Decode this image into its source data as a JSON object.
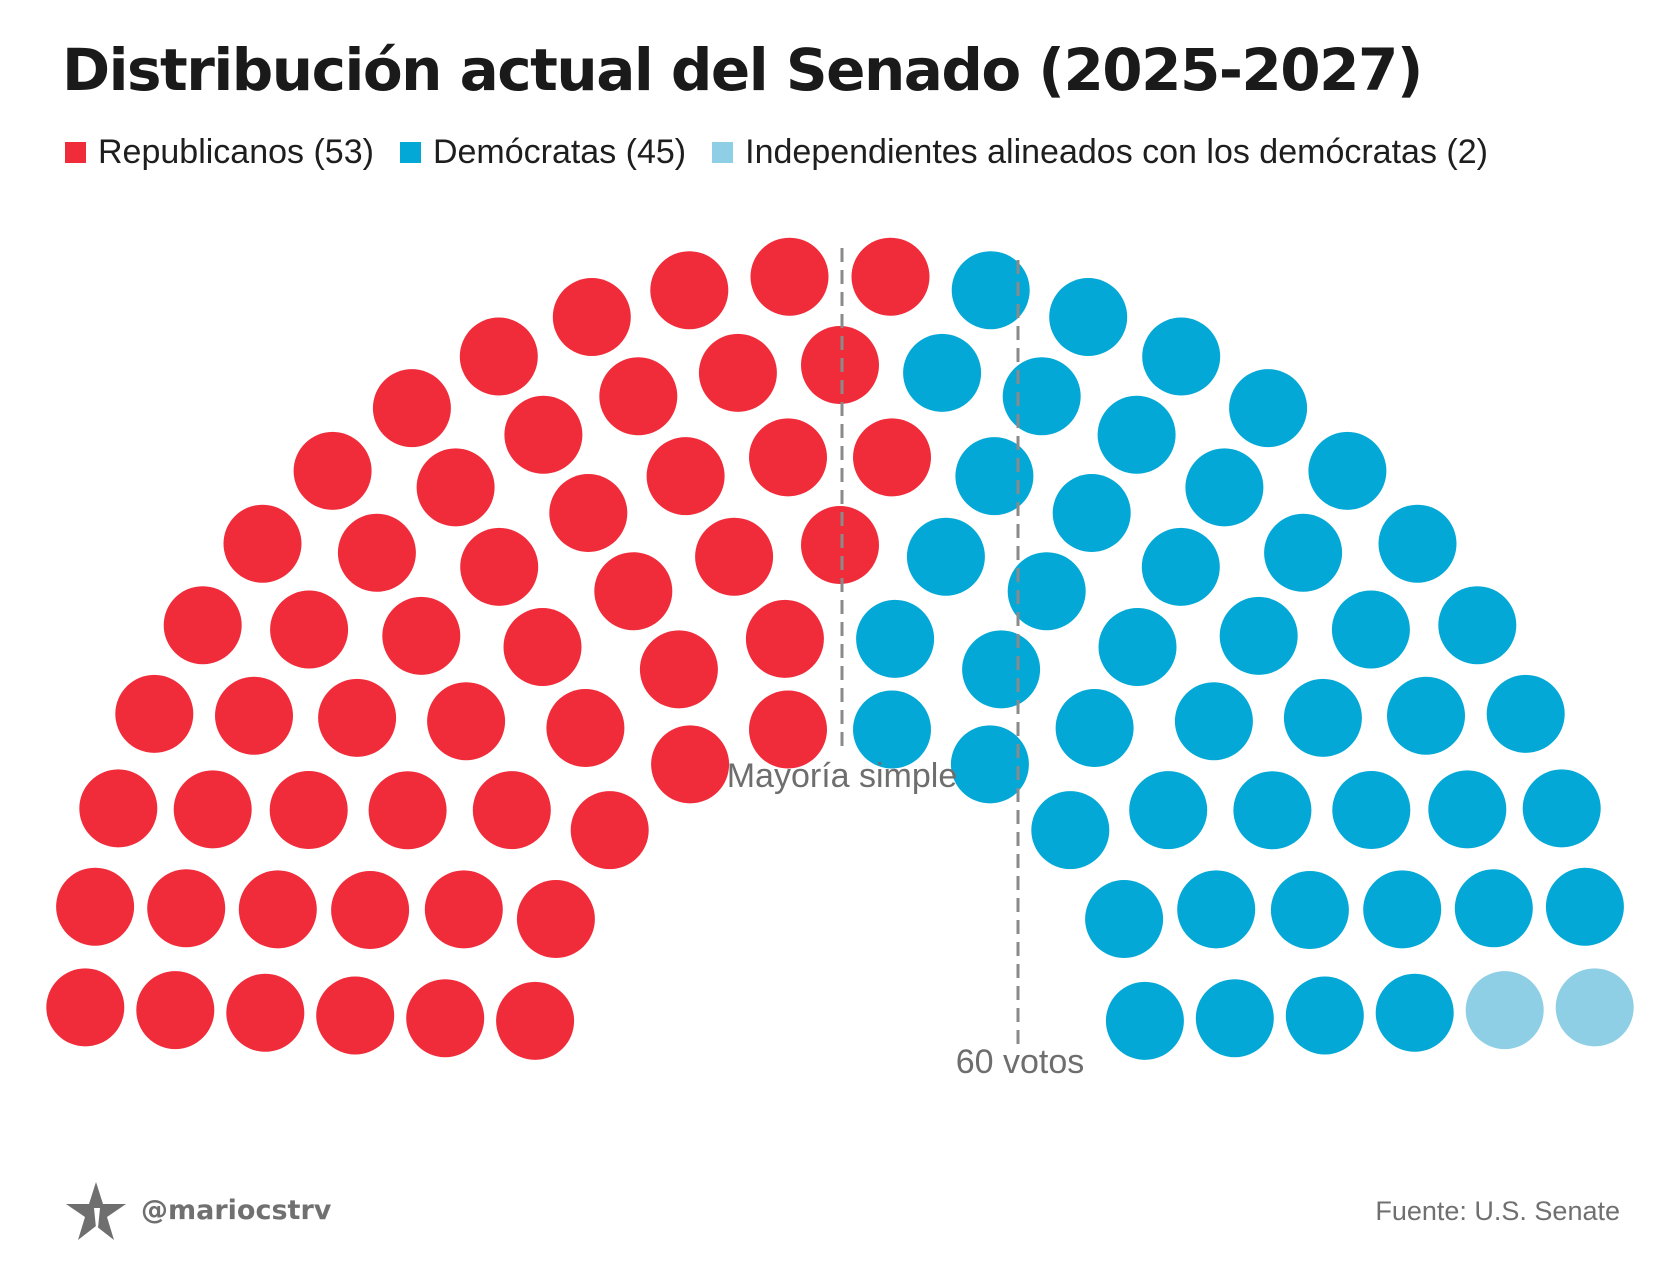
{
  "title": "Distribución actual del Senado (2025-2027)",
  "legend": [
    {
      "label": "Republicanos (53)",
      "color": "#f02c3a"
    },
    {
      "label": "Demócratas (45)",
      "color": "#03a8d6"
    },
    {
      "label": "Independientes alineados con los demócratas (2)",
      "color": "#8ecfe5"
    }
  ],
  "chart_data": {
    "type": "parliament",
    "total_seats": 100,
    "series": [
      {
        "name": "Republicanos",
        "values": [
          53
        ],
        "color": "#f02c3a"
      },
      {
        "name": "Demócratas",
        "values": [
          45
        ],
        "color": "#03a8d6"
      },
      {
        "name": "Independientes alineados con los demócratas",
        "values": [
          2
        ],
        "color": "#8ecfe5"
      }
    ],
    "thresholds": [
      {
        "label": "Mayoría simple",
        "value": 51
      },
      {
        "label": "60 votos",
        "value": 60
      }
    ]
  },
  "footer": {
    "handle": "@mariocstrv",
    "logo_icon": "star-logo-icon",
    "source": "Fuente: U.S. Senate"
  }
}
